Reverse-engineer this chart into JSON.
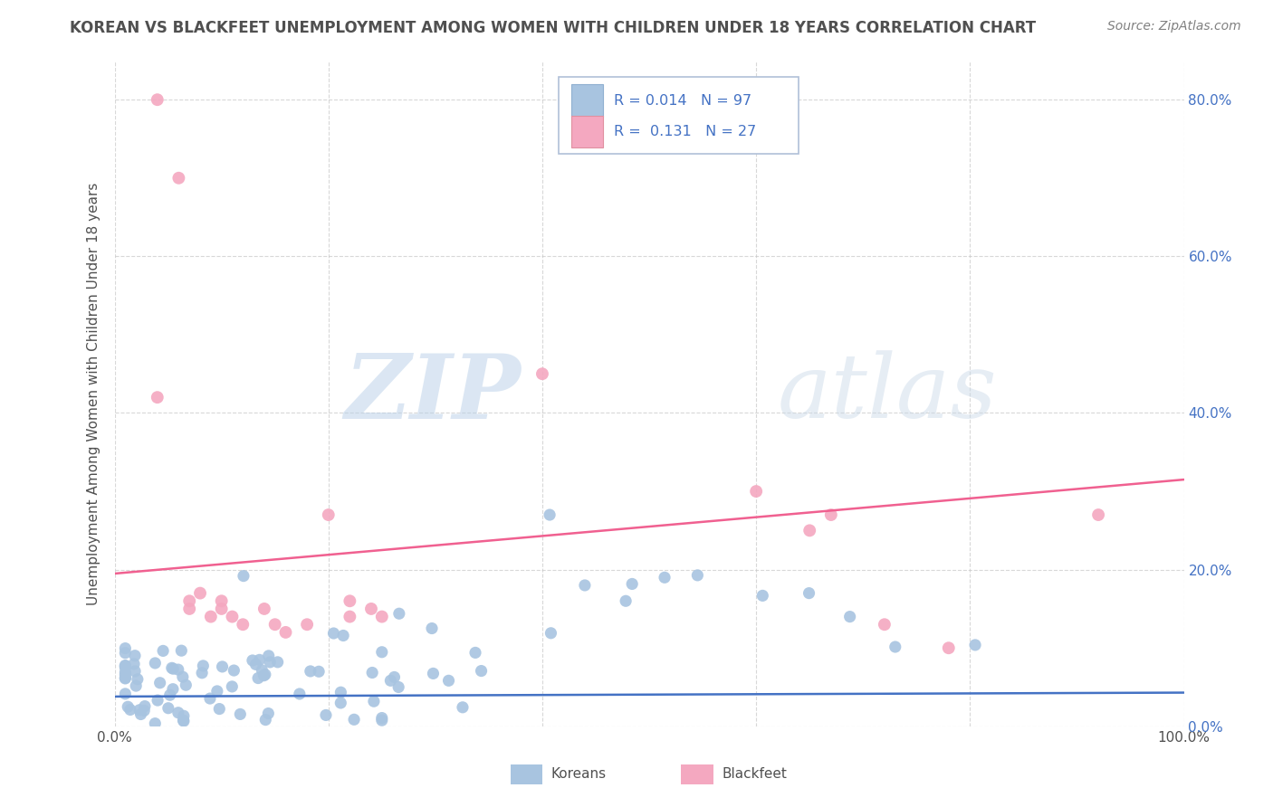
{
  "title": "KOREAN VS BLACKFEET UNEMPLOYMENT AMONG WOMEN WITH CHILDREN UNDER 18 YEARS CORRELATION CHART",
  "source": "Source: ZipAtlas.com",
  "ylabel": "Unemployment Among Women with Children Under 18 years",
  "xlim": [
    0,
    1.0
  ],
  "ylim": [
    0.0,
    0.85
  ],
  "xticks": [
    0.0,
    0.2,
    0.4,
    0.6,
    0.8,
    1.0
  ],
  "xtick_labels": [
    "0.0%",
    "",
    "",
    "",
    "",
    "100.0%"
  ],
  "yticks": [
    0.0,
    0.2,
    0.4,
    0.6,
    0.8
  ],
  "ytick_labels_right": [
    "0.0%",
    "20.0%",
    "40.0%",
    "60.0%",
    "80.0%"
  ],
  "korean_color": "#a8c4e0",
  "blackfeet_color": "#f4a8c0",
  "korean_R": 0.014,
  "korean_N": 97,
  "blackfeet_R": 0.131,
  "blackfeet_N": 27,
  "korean_trend_color": "#4472c4",
  "blackfeet_trend_color": "#f06090",
  "legend_color": "#4472c4",
  "watermark_color": "#ccdaeb",
  "background_color": "#ffffff",
  "grid_color": "#c8c8c8",
  "title_color": "#505050",
  "source_color": "#808080",
  "ytick_color": "#4472c4",
  "xtick_color": "#505050",
  "blackfeet_x": [
    0.04,
    0.04,
    0.06,
    0.07,
    0.07,
    0.08,
    0.09,
    0.1,
    0.1,
    0.11,
    0.12,
    0.14,
    0.15,
    0.16,
    0.18,
    0.2,
    0.22,
    0.22,
    0.24,
    0.25,
    0.4,
    0.6,
    0.65,
    0.67,
    0.72,
    0.78,
    0.92
  ],
  "blackfeet_y": [
    0.8,
    0.42,
    0.7,
    0.15,
    0.16,
    0.17,
    0.14,
    0.15,
    0.16,
    0.14,
    0.13,
    0.15,
    0.13,
    0.12,
    0.13,
    0.27,
    0.14,
    0.16,
    0.15,
    0.14,
    0.45,
    0.3,
    0.25,
    0.27,
    0.13,
    0.1,
    0.27
  ]
}
